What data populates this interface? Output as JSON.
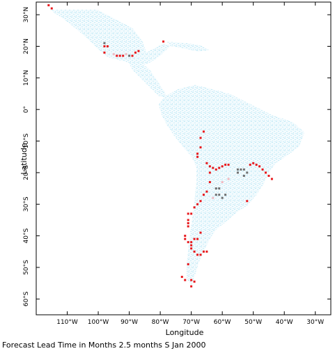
{
  "x_axis": {
    "title": "Longitude",
    "ticks": [
      {
        "lon": -110,
        "label": "110°W"
      },
      {
        "lon": -100,
        "label": "100°W"
      },
      {
        "lon": -90,
        "label": "90°W"
      },
      {
        "lon": -80,
        "label": "80°W"
      },
      {
        "lon": -70,
        "label": "70°W"
      },
      {
        "lon": -60,
        "label": "60°W"
      },
      {
        "lon": -50,
        "label": "50°W"
      },
      {
        "lon": -40,
        "label": "40°W"
      },
      {
        "lon": -30,
        "label": "30°W"
      }
    ]
  },
  "y_axis": {
    "title": "Latitude",
    "ticks": [
      {
        "lat": 30,
        "label": "30°N"
      },
      {
        "lat": 20,
        "label": "20°N"
      },
      {
        "lat": 10,
        "label": "10°N"
      },
      {
        "lat": 0,
        "label": "0°"
      },
      {
        "lat": -10,
        "label": "10°S"
      },
      {
        "lat": -20,
        "label": "20°S"
      },
      {
        "lat": -30,
        "label": "30°S"
      },
      {
        "lat": -40,
        "label": "40°S"
      },
      {
        "lat": -50,
        "label": "50°S"
      },
      {
        "lat": -60,
        "label": "60°S"
      }
    ]
  },
  "caption": "Forecast Lead Time in Months 2.5 months S Jan 2000",
  "colors": {
    "land": "#cfeef8",
    "land_alt": "#a8c4e6",
    "red": "#e8181c",
    "pink": "#f0b8c0",
    "gray": "#707070",
    "frame": "#000000"
  },
  "chart_data": {
    "type": "map",
    "xlim": [
      -120,
      -25
    ],
    "ylim": [
      -65,
      34
    ],
    "red_points": [
      [
        -116,
        33
      ],
      [
        -115,
        32
      ],
      [
        -98,
        20
      ],
      [
        -97,
        20
      ],
      [
        -98,
        18
      ],
      [
        -94,
        17
      ],
      [
        -93,
        17
      ],
      [
        -92,
        17
      ],
      [
        -89,
        17
      ],
      [
        -88,
        18
      ],
      [
        -87,
        18.5
      ],
      [
        -79,
        21.5
      ],
      [
        -66,
        -7
      ],
      [
        -67,
        -9
      ],
      [
        -67,
        -12
      ],
      [
        -68,
        -14
      ],
      [
        -68,
        -15
      ],
      [
        -65,
        -17
      ],
      [
        -64,
        -18
      ],
      [
        -63,
        -18.5
      ],
      [
        -62,
        -19
      ],
      [
        -61,
        -18.5
      ],
      [
        -60,
        -18
      ],
      [
        -59,
        -17.5
      ],
      [
        -58,
        -17.5
      ],
      [
        -51,
        -17.5
      ],
      [
        -50,
        -17
      ],
      [
        -49,
        -17.5
      ],
      [
        -48,
        -18
      ],
      [
        -47,
        -19
      ],
      [
        -46,
        -20
      ],
      [
        -45,
        -21
      ],
      [
        -44,
        -22
      ],
      [
        -64,
        -20
      ],
      [
        -64,
        -23
      ],
      [
        -65,
        -26
      ],
      [
        -66,
        -27
      ],
      [
        -67,
        -29
      ],
      [
        -68,
        -30
      ],
      [
        -69,
        -31
      ],
      [
        -70,
        -33
      ],
      [
        -71,
        -35
      ],
      [
        -71,
        -36
      ],
      [
        -71,
        -37
      ],
      [
        -67,
        -39
      ],
      [
        -68,
        -41
      ],
      [
        -69,
        -41
      ],
      [
        -70,
        -42
      ],
      [
        -70,
        -43
      ],
      [
        -70,
        -44
      ],
      [
        -69,
        -45
      ],
      [
        -68,
        -46
      ],
      [
        -67,
        -46
      ],
      [
        -66,
        -45
      ],
      [
        -65,
        -45
      ],
      [
        -52,
        -29
      ],
      [
        -71,
        -33
      ],
      [
        -72,
        -40
      ],
      [
        -72,
        -41
      ],
      [
        -71,
        -42
      ],
      [
        -71,
        -49
      ],
      [
        -73,
        -53
      ],
      [
        -72,
        -54
      ],
      [
        -70,
        -54
      ],
      [
        -69,
        -54.5
      ],
      [
        -70,
        -56
      ]
    ],
    "gray_points": [
      [
        -98,
        21
      ],
      [
        -90,
        17
      ],
      [
        -55,
        -19
      ],
      [
        -54,
        -19
      ],
      [
        -53,
        -19
      ],
      [
        -52,
        -20
      ],
      [
        -53,
        -21
      ],
      [
        -55,
        -20
      ],
      [
        -62,
        -25
      ],
      [
        -61,
        -25
      ],
      [
        -62,
        -27
      ],
      [
        -61,
        -27
      ],
      [
        -60,
        -28
      ],
      [
        -59,
        -27
      ]
    ],
    "pink_points": [
      [
        -95,
        17.5
      ],
      [
        -91,
        17.5
      ],
      [
        -58,
        -22
      ],
      [
        -60,
        -23
      ],
      [
        -63,
        -28
      ]
    ]
  }
}
